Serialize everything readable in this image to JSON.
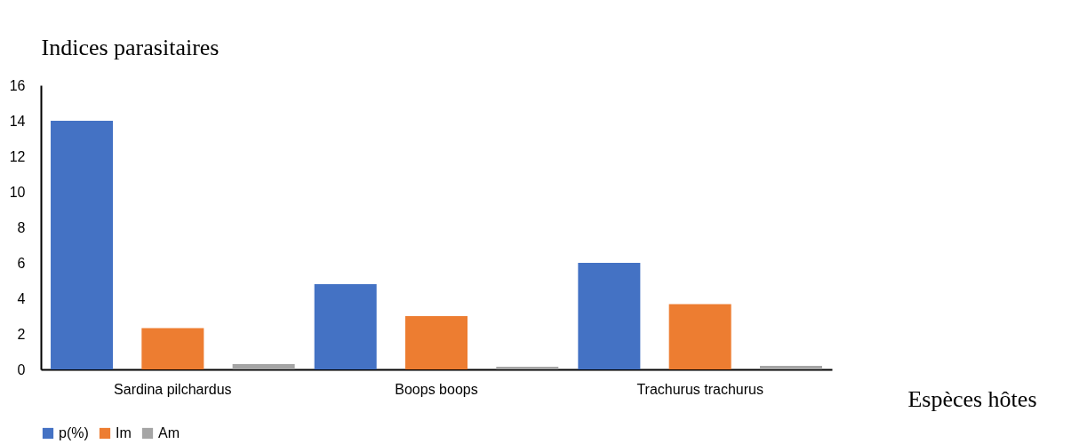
{
  "chart_data": {
    "type": "bar",
    "ylabel": "Indices parasitaires",
    "xlabel": "Espèces hôtes",
    "categories": [
      "Sardina pilchardus",
      "Boops boops",
      "Trachurus trachurus"
    ],
    "series": [
      {
        "name": "p(%)",
        "color": "#4472c4",
        "values": [
          14,
          4.8,
          6.0
        ]
      },
      {
        "name": "Im",
        "color": "#ed7d31",
        "values": [
          2.33,
          3.0,
          3.67
        ]
      },
      {
        "name": "Am",
        "color": "#a5a5a5",
        "values": [
          0.3,
          0.15,
          0.2
        ]
      }
    ],
    "ylim": [
      0,
      16
    ],
    "yticks": [
      0,
      2,
      4,
      6,
      8,
      10,
      12,
      14,
      16
    ],
    "grid": false,
    "legend": "bottom"
  }
}
